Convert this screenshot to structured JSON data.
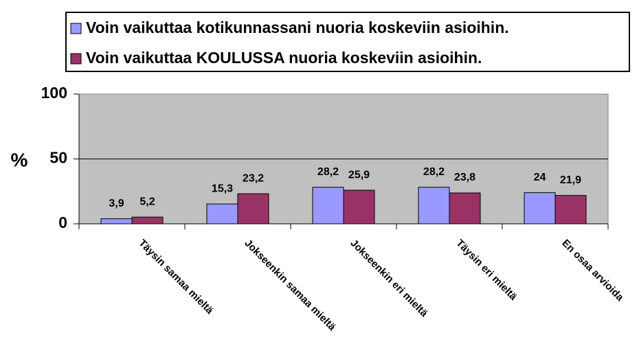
{
  "chart_data": {
    "type": "bar",
    "categories": [
      "Täysin samaa mieltä",
      "Jokseenkin samaa mieltä",
      "Jokseenkin eri mieltä",
      "Täysin eri mieltä",
      "En osaa arvioida"
    ],
    "series": [
      {
        "name": "Voin vaikuttaa kotikunnassani nuoria koskeviin asioihin.",
        "color": "#9999ff",
        "values": [
          3.9,
          15.3,
          28.2,
          28.2,
          24
        ],
        "value_labels": [
          "3,9",
          "15,3",
          "28,2",
          "28,2",
          "24"
        ]
      },
      {
        "name": "Voin vaikuttaa KOULUSSA nuoria koskeviin asioihin.",
        "color": "#993366",
        "values": [
          5.2,
          23.2,
          25.9,
          23.8,
          21.9
        ],
        "value_labels": [
          "5,2",
          "23,2",
          "25,9",
          "23,8",
          "21,9"
        ]
      }
    ],
    "y_label": "%",
    "ylim": [
      0,
      100
    ],
    "yticks": [
      0,
      50,
      100
    ],
    "grid": true,
    "plot_background": "#c0c0c0"
  }
}
